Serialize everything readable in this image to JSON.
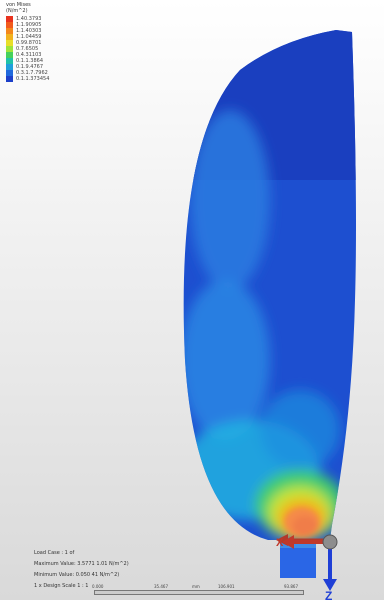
{
  "legend": {
    "title": [
      "von Mises",
      "(N/m^2)"
    ],
    "values": [
      "1.40.3793",
      "1.1.90905",
      "1.1.40303",
      "1.1.04459",
      "0.99.8701",
      "0.7.6505",
      "0.4.31103",
      "0.1.1.3864",
      "0.1.9.4767",
      "0.3.1.7.7962",
      "0.1.1.373454"
    ],
    "colors": [
      "#e8321e",
      "#f25b1c",
      "#f4871b",
      "#f2b21e",
      "#e8de28",
      "#9ee43a",
      "#45d05c",
      "#1fc2a8",
      "#1f9fdb",
      "#1f68dc",
      "#1c3fc9"
    ]
  },
  "info": {
    "load_case": "Load Case : 1 of",
    "max_value": "Maximum Value: 3.5771 1.01 N/m^2)",
    "min_value": "Minimum Value: 0.050 41 N/m^2)",
    "scale": "1 x Design Scale 1 : 1"
  },
  "ruler": {
    "ticks": [
      "0.000",
      "35.467",
      "mm",
      "106.901",
      "93.867"
    ]
  },
  "axes": {
    "x_label": "X",
    "z_label": "Z",
    "x_color": "#c0392b",
    "z_color": "#1f3fd6"
  }
}
